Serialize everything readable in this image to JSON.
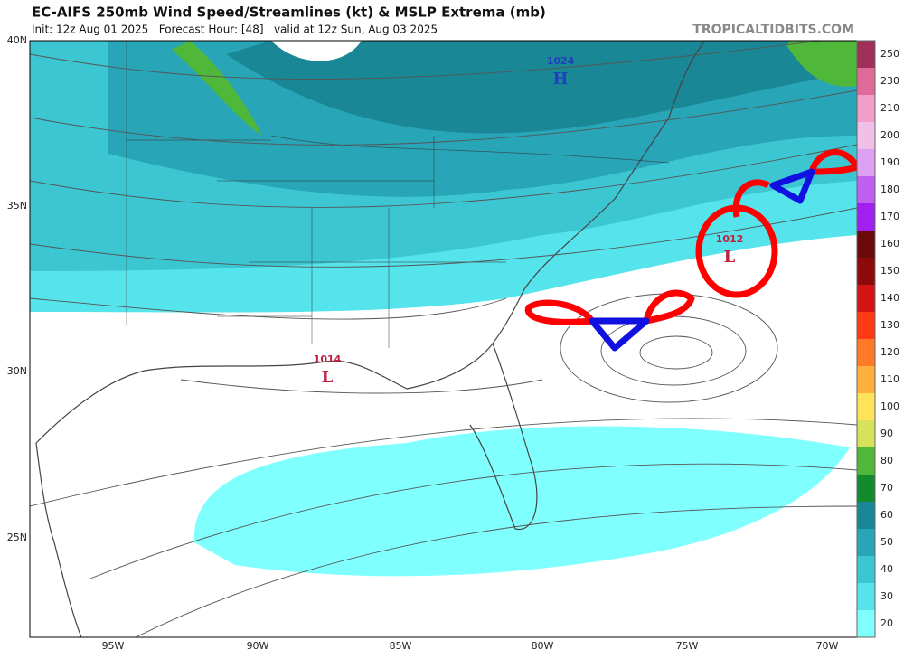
{
  "header": {
    "title": "EC-AIFS 250mb Wind Speed/Streamlines (kt) & MSLP Extrema (mb)",
    "subtitle": "Init: 12z Aug 01 2025   Forecast Hour: [48]   valid at 12z Sun, Aug 03 2025",
    "site": "TROPICALTIDBITS.COM"
  },
  "map": {
    "lat_labels": [
      "40N",
      "35N",
      "30N",
      "25N"
    ],
    "lon_labels": [
      "95W",
      "90W",
      "85W",
      "80W",
      "75W",
      "70W"
    ],
    "pressure_centers": [
      {
        "value": "1024",
        "type": "H"
      },
      {
        "value": "1014",
        "type": "L"
      },
      {
        "value": "1012",
        "type": "L"
      }
    ]
  },
  "colorbar": {
    "labels": [
      "20",
      "30",
      "40",
      "50",
      "60",
      "70",
      "80",
      "90",
      "100",
      "110",
      "120",
      "130",
      "140",
      "150",
      "160",
      "170",
      "180",
      "190",
      "200",
      "210",
      "230",
      "250"
    ],
    "colors": [
      "#80ffff",
      "#55e3ec",
      "#3cc6d2",
      "#28a5b6",
      "#1a8796",
      "#138a2e",
      "#4fb83a",
      "#d6e35a",
      "#ffe35a",
      "#ffb03c",
      "#ff7a28",
      "#ff3a14",
      "#d21414",
      "#8c0a0a",
      "#6a0a0a",
      "#a020f0",
      "#c060f0",
      "#dda0f0",
      "#f0c0e8",
      "#f0a0c8",
      "#e06a9a",
      "#a0305a"
    ]
  }
}
